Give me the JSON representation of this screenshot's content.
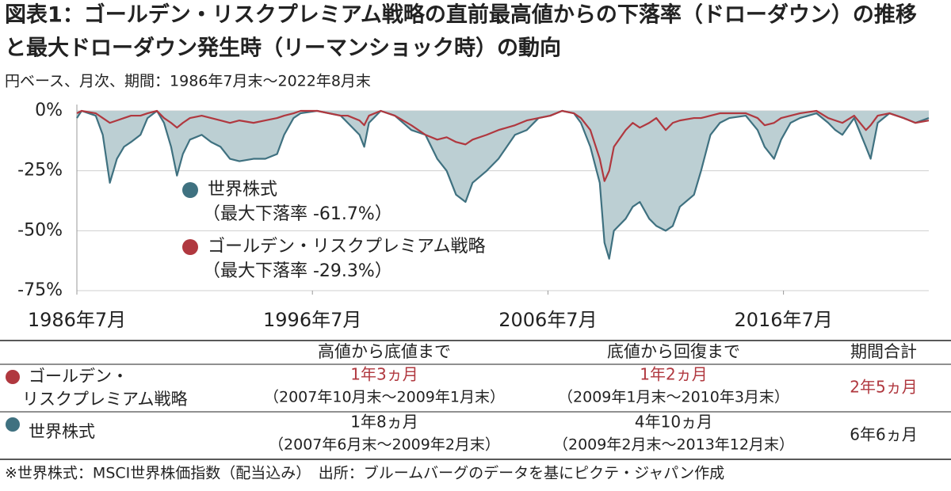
{
  "chart_data": {
    "type": "area-line",
    "title": [
      "図表1：ゴールデン・リスクプレミアム戦略の直前最高値からの下落率（ドローダウン）の推移",
      "と最大ドローダウン発生時（リーマンショック時）の動向"
    ],
    "subtitle": "円ベース、月次、期間：1986年7月末～2022年8月末",
    "x": [
      1986.5,
      1986.7,
      1987.3,
      1987.6,
      1987.9,
      1988.2,
      1988.5,
      1988.8,
      1989.2,
      1989.5,
      1989.9,
      1990.2,
      1990.5,
      1990.75,
      1991.0,
      1991.3,
      1991.8,
      1992.2,
      1992.6,
      1993.0,
      1993.4,
      1994.0,
      1994.5,
      1995.0,
      1995.3,
      1995.7,
      1996.0,
      1996.7,
      1997.7,
      1998.0,
      1998.5,
      1998.7,
      1998.9,
      1999.4,
      2000.0,
      2000.7,
      2001.3,
      2001.8,
      2002.2,
      2002.6,
      2003.0,
      2003.3,
      2003.9,
      2004.4,
      2005.1,
      2005.6,
      2006.1,
      2006.6,
      2007.1,
      2007.6,
      2007.9,
      2008.3,
      2008.7,
      2008.9,
      2009.1,
      2009.3,
      2009.8,
      2010.1,
      2010.4,
      2010.8,
      2011.1,
      2011.5,
      2011.8,
      2012.1,
      2012.7,
      2013.0,
      2013.4,
      2013.8,
      2014.2,
      2014.9,
      2015.4,
      2015.7,
      2016.1,
      2016.4,
      2016.8,
      2017.2,
      2017.9,
      2018.4,
      2018.7,
      2019.0,
      2019.5,
      2020.0,
      2020.2,
      2020.5,
      2021.0,
      2021.6,
      2022.1,
      2022.67
    ],
    "series": [
      {
        "name": "世界株式",
        "annotation": "（最大下落率 -61.7%）",
        "color": "#3f7180",
        "fill": "#bccfd3",
        "values": [
          -3,
          0,
          -2,
          -10,
          -30,
          -20,
          -15,
          -13,
          -10,
          -3,
          0,
          -5,
          -15,
          -27,
          -18,
          -12,
          -10,
          -13,
          -15,
          -20,
          -21,
          -20,
          -20,
          -18,
          -10,
          -3,
          -1,
          0,
          -2,
          -5,
          -10,
          -15,
          -5,
          0,
          -2,
          -8,
          -10,
          -20,
          -25,
          -35,
          -38,
          -30,
          -25,
          -20,
          -10,
          -8,
          -3,
          -2,
          0,
          -1,
          -5,
          -15,
          -30,
          -55,
          -61.7,
          -50,
          -45,
          -40,
          -38,
          -45,
          -48,
          -50,
          -48,
          -40,
          -35,
          -25,
          -10,
          -5,
          -3,
          -2,
          -8,
          -15,
          -20,
          -12,
          -5,
          -3,
          -1,
          -5,
          -8,
          -10,
          -3,
          -15,
          -20,
          -5,
          -1,
          -3,
          -5,
          -3
        ]
      },
      {
        "name": "ゴールデン・リスクプレミアム戦略",
        "annotation": "（最大下落率 -29.3%）",
        "color": "#b0383f",
        "values": [
          -1,
          0,
          -1,
          -3,
          -5,
          -4,
          -3,
          -2,
          -2,
          -1,
          0,
          -3,
          -5,
          -7,
          -5,
          -3,
          -2,
          -3,
          -4,
          -5,
          -4,
          -5,
          -4,
          -3,
          -2,
          -1,
          0,
          0,
          -2,
          -2,
          -4,
          -6,
          -2,
          0,
          -2,
          -6,
          -10,
          -12,
          -11,
          -13,
          -14,
          -12,
          -10,
          -8,
          -6,
          -4,
          -3,
          -2,
          0,
          -1,
          -3,
          -8,
          -20,
          -29.3,
          -25,
          -15,
          -8,
          -5,
          -7,
          -5,
          -3,
          -8,
          -5,
          -4,
          -3,
          -3,
          -2,
          -1,
          -1,
          -1,
          -3,
          -6,
          -5,
          -3,
          -2,
          -1,
          0,
          -3,
          -4,
          -5,
          -2,
          -8,
          -6,
          -2,
          -1,
          -3,
          -5,
          -4
        ]
      }
    ],
    "xlim": [
      1986.5,
      2022.67
    ],
    "xticks": [
      {
        "value": 1986.5,
        "label": "1986年7月"
      },
      {
        "value": 1996.5,
        "label": "1996年7月"
      },
      {
        "value": 2006.5,
        "label": "2006年7月"
      },
      {
        "value": 2016.5,
        "label": "2016年7月"
      }
    ],
    "ylim": [
      -75,
      0
    ],
    "yticks": [
      {
        "value": 0,
        "label": "0%"
      },
      {
        "value": -25,
        "label": "-25%"
      },
      {
        "value": -50,
        "label": "-50%"
      },
      {
        "value": -75,
        "label": "-75%"
      }
    ],
    "grid": true
  },
  "table": {
    "header": [
      "高値から底値まで",
      "底値から回復まで",
      "期間合計"
    ],
    "rows": [
      {
        "name": [
          "ゴールデン・",
          "リスクプレミアム戦略"
        ],
        "color": "#b0383f",
        "cells": [
          [
            "1年3ヵ月",
            "（2007年10月末～2009年1月末）"
          ],
          [
            "1年2ヵ月",
            "（2009年1月末～2010年3月末）"
          ],
          "2年5ヵ月"
        ]
      },
      {
        "name": [
          "世界株式"
        ],
        "color": "#3f7180",
        "cells": [
          [
            "1年8ヵ月",
            "（2007年6月末～2009年2月末）"
          ],
          [
            "4年10ヵ月",
            "（2009年2月末～2013年12月末）"
          ],
          "6年6ヵ月"
        ]
      }
    ]
  },
  "footnote": "※世界株式：MSCI世界株価指数（配当込み）　出所：ブルームバーグのデータを基にピクテ・ジャパン作成"
}
